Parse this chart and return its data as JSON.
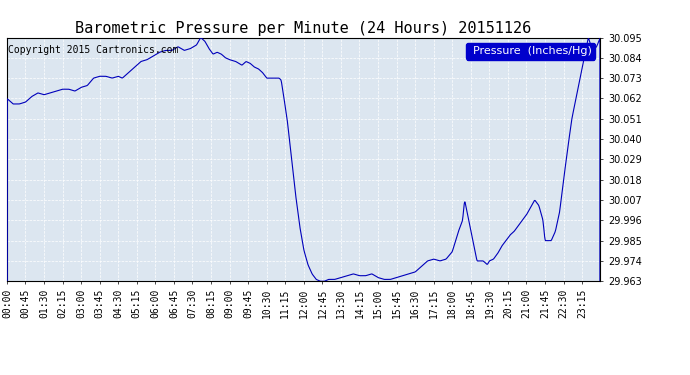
{
  "title": "Barometric Pressure per Minute (24 Hours) 20151126",
  "copyright": "Copyright 2015 Cartronics.com",
  "legend_label": "Pressure  (Inches/Hg)",
  "line_color": "#0000bb",
  "background_color": "#ffffff",
  "plot_bg_color": "#dce6f0",
  "grid_color": "#ffffff",
  "ylim": [
    29.963,
    30.095
  ],
  "yticks": [
    29.963,
    29.974,
    29.985,
    29.996,
    30.007,
    30.018,
    30.029,
    30.04,
    30.051,
    30.062,
    30.073,
    30.084,
    30.095
  ],
  "xtick_labels": [
    "00:00",
    "00:45",
    "01:30",
    "02:15",
    "03:00",
    "03:45",
    "04:30",
    "05:15",
    "06:00",
    "06:45",
    "07:30",
    "08:15",
    "09:00",
    "09:45",
    "10:30",
    "11:15",
    "12:00",
    "12:45",
    "13:30",
    "14:15",
    "15:00",
    "15:45",
    "16:30",
    "17:15",
    "18:00",
    "18:45",
    "19:30",
    "20:15",
    "21:00",
    "21:45",
    "22:30",
    "23:15"
  ],
  "title_fontsize": 11,
  "copyright_fontsize": 7,
  "legend_fontsize": 8,
  "tick_fontsize": 7,
  "ytick_fontsize": 7
}
